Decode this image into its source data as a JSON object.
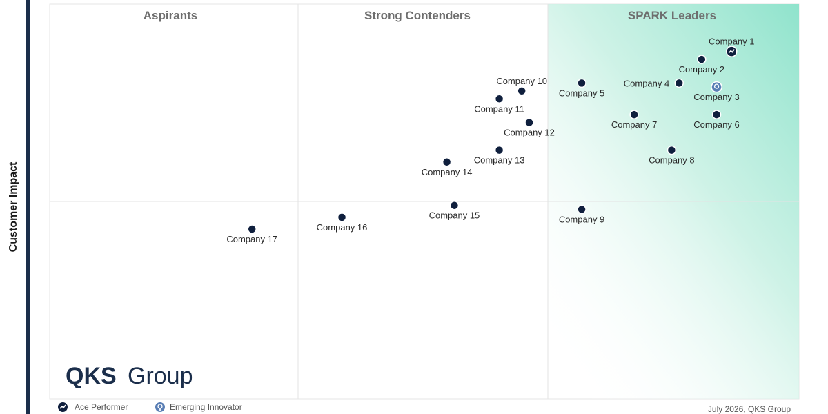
{
  "colors": {
    "point": "#0f1f3d",
    "axis_bar": "#1b2e4b",
    "leader_gradient": "#8fe3cc",
    "grid": "#e3e3e3",
    "emerging_icon": "#5a7fb5"
  },
  "axis": {
    "y_label": "Customer Impact"
  },
  "quadrants": {
    "aspirants": "Aspirants",
    "contenders": "Strong Contenders",
    "leaders": "SPARK Leaders"
  },
  "logo": {
    "brand": "QKS",
    "word": "Group"
  },
  "legend": {
    "ace_performer": "Ace Performer",
    "emerging_innovator": "Emerging Innovator",
    "ace_icon": "ace-performer-icon",
    "emerging_icon": "emerging-innovator-icon"
  },
  "footer": {
    "credit": "July 2026, QKS Group"
  },
  "chart_data": {
    "type": "scatter",
    "xlabel": "",
    "ylabel": "Customer Impact",
    "points": [
      {
        "label": "Company 1",
        "x": 0.91,
        "y": 0.88,
        "marker": "ace",
        "label_pos": "above"
      },
      {
        "label": "Company 2",
        "x": 0.87,
        "y": 0.86,
        "marker": "dot",
        "label_pos": "below"
      },
      {
        "label": "Company 3",
        "x": 0.89,
        "y": 0.79,
        "marker": "emerging",
        "label_pos": "below"
      },
      {
        "label": "Company 4",
        "x": 0.84,
        "y": 0.8,
        "marker": "dot",
        "label_pos": "left"
      },
      {
        "label": "Company 5",
        "x": 0.71,
        "y": 0.8,
        "marker": "dot",
        "label_pos": "below"
      },
      {
        "label": "Company 6",
        "x": 0.89,
        "y": 0.72,
        "marker": "dot",
        "label_pos": "below"
      },
      {
        "label": "Company 7",
        "x": 0.78,
        "y": 0.72,
        "marker": "dot",
        "label_pos": "below"
      },
      {
        "label": "Company 8",
        "x": 0.83,
        "y": 0.63,
        "marker": "dot",
        "label_pos": "below"
      },
      {
        "label": "Company 9",
        "x": 0.71,
        "y": 0.48,
        "marker": "dot",
        "label_pos": "below"
      },
      {
        "label": "Company 10",
        "x": 0.63,
        "y": 0.78,
        "marker": "dot",
        "label_pos": "above"
      },
      {
        "label": "Company 11",
        "x": 0.6,
        "y": 0.76,
        "marker": "dot",
        "label_pos": "below"
      },
      {
        "label": "Company 12",
        "x": 0.64,
        "y": 0.7,
        "marker": "dot",
        "label_pos": "below"
      },
      {
        "label": "Company 13",
        "x": 0.6,
        "y": 0.63,
        "marker": "dot",
        "label_pos": "below"
      },
      {
        "label": "Company 14",
        "x": 0.53,
        "y": 0.6,
        "marker": "dot",
        "label_pos": "below"
      },
      {
        "label": "Company 15",
        "x": 0.54,
        "y": 0.49,
        "marker": "dot",
        "label_pos": "below"
      },
      {
        "label": "Company 16",
        "x": 0.39,
        "y": 0.46,
        "marker": "dot",
        "label_pos": "below"
      },
      {
        "label": "Company 17",
        "x": 0.27,
        "y": 0.43,
        "marker": "dot",
        "label_pos": "below"
      }
    ],
    "quadrant_labels": [
      "Aspirants",
      "Strong Contenders",
      "SPARK Leaders"
    ],
    "xlim": [
      0,
      1
    ],
    "ylim": [
      0,
      1
    ],
    "grid": true,
    "legend": [
      "Ace Performer",
      "Emerging Innovator"
    ],
    "legend_placement": "bottom-left"
  }
}
